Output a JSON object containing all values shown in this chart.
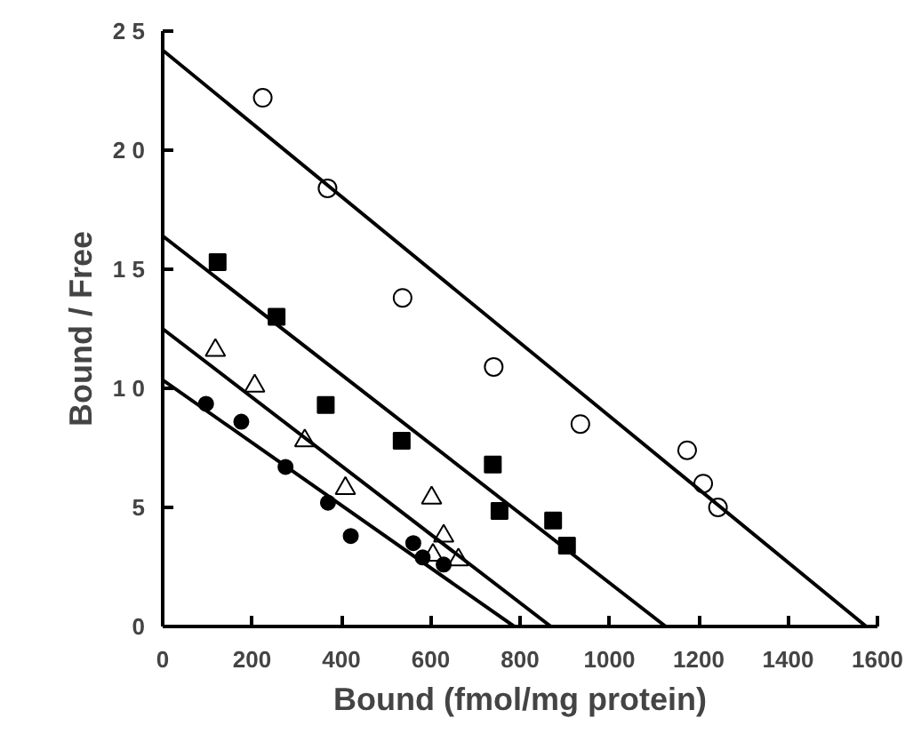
{
  "chart_data": {
    "type": "scatter",
    "xlabel": "Bound (fmol/mg protein)",
    "ylabel": "Bound / Free",
    "xlim": [
      0,
      1600
    ],
    "ylim": [
      0,
      25
    ],
    "xticks": [
      0,
      200,
      400,
      600,
      800,
      1000,
      1200,
      1400,
      1600
    ],
    "yticks": [
      {
        "value": 0,
        "label": "0"
      },
      {
        "value": 5,
        "label": "5"
      },
      {
        "value": 10,
        "label": "1 0"
      },
      {
        "value": 15,
        "label": "1 5"
      },
      {
        "value": 20,
        "label": "2 0"
      },
      {
        "value": 25,
        "label": "2 5"
      }
    ],
    "grid": false,
    "series": [
      {
        "marker": "circle_open",
        "color": "#000000",
        "x": [
          224,
          369,
          537,
          741,
          935,
          1174,
          1210,
          1243
        ],
        "values": [
          22.2,
          18.4,
          13.8,
          10.9,
          8.5,
          7.4,
          6.0,
          5.0
        ]
      },
      {
        "marker": "square",
        "color": "#000000",
        "x": [
          123,
          255,
          365,
          535,
          739,
          754,
          874,
          905
        ],
        "values": [
          15.3,
          13.0,
          9.3,
          7.8,
          6.8,
          4.85,
          4.45,
          3.4
        ]
      },
      {
        "marker": "triangle_open",
        "color": "#000000",
        "x": [
          118,
          206,
          318,
          409,
          602,
          629,
          605,
          662
        ],
        "values": [
          11.6,
          10.1,
          7.8,
          5.8,
          5.4,
          3.8,
          3.0,
          2.8
        ]
      },
      {
        "marker": "circle",
        "color": "#000000",
        "x": [
          97,
          176,
          275,
          370,
          421,
          561,
          582,
          629
        ],
        "values": [
          9.35,
          8.6,
          6.7,
          5.2,
          3.8,
          3.5,
          2.9,
          2.6
        ]
      },
      {
        "type": "line",
        "line_style": "solid",
        "color": "#000000",
        "x": [
          0,
          1575
        ],
        "values": [
          24.2,
          0
        ]
      },
      {
        "type": "line",
        "line_style": "solid",
        "color": "#000000",
        "x": [
          0,
          1126
        ],
        "values": [
          16.4,
          0
        ]
      },
      {
        "type": "line",
        "line_style": "solid",
        "color": "#000000",
        "x": [
          0,
          869
        ],
        "values": [
          12.5,
          0
        ]
      },
      {
        "type": "line",
        "line_style": "solid",
        "color": "#000000",
        "x": [
          0,
          787
        ],
        "values": [
          10.35,
          0
        ]
      }
    ]
  }
}
